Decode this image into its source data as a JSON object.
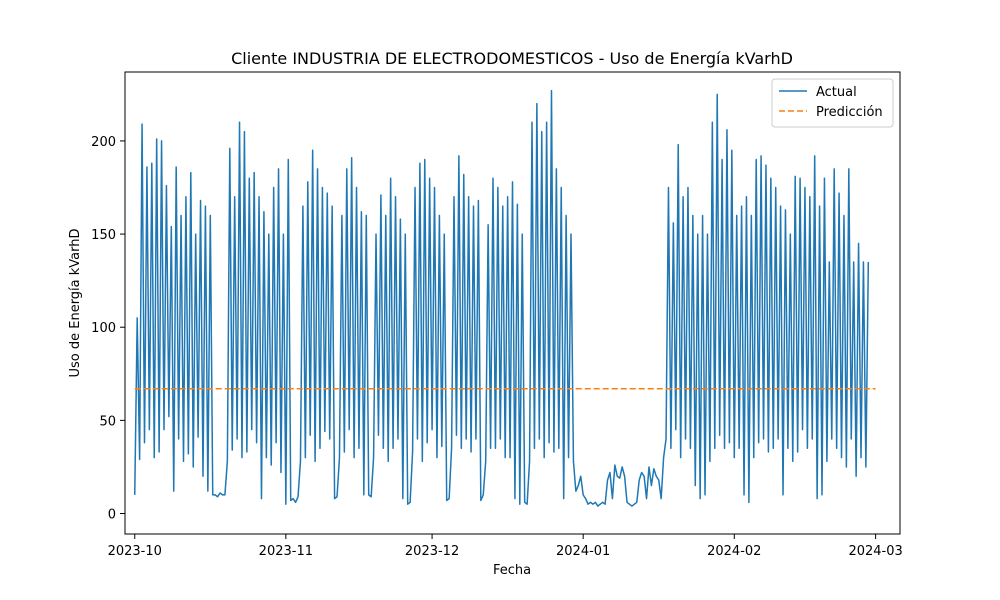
{
  "chart_data": {
    "type": "line",
    "title": "Cliente INDUSTRIA DE ELECTRODOMESTICOS - Uso de Energía kVarhD",
    "xlabel": "Fecha",
    "ylabel": "Uso de Energía kVarhD",
    "x_range": [
      "2023-09-29",
      "2024-03-06"
    ],
    "ylim": [
      -11,
      237
    ],
    "x_ticks": [
      "2023-10",
      "2023-11",
      "2023-12",
      "2024-01",
      "2024-02",
      "2024-03"
    ],
    "y_ticks": [
      0,
      50,
      100,
      150,
      200
    ],
    "grid": false,
    "legend_position": "top-right",
    "series": [
      {
        "name": "Actual",
        "color": "#1f77b4",
        "style": "solid",
        "x_start": "2023-10-01",
        "x_end": "2024-03-01",
        "points_per_day": 2,
        "values": [
          10,
          105,
          29,
          209,
          38,
          186,
          45,
          188,
          30,
          201,
          33,
          200,
          45,
          176,
          52,
          154,
          12,
          186,
          40,
          160,
          28,
          170,
          32,
          183,
          25,
          150,
          41,
          168,
          20,
          165,
          12,
          160,
          10,
          10,
          9,
          11,
          10,
          10,
          28,
          196,
          34,
          170,
          40,
          210,
          30,
          205,
          33,
          180,
          45,
          183,
          38,
          170,
          8,
          162,
          30,
          150,
          26,
          175,
          38,
          185,
          22,
          150,
          5,
          190,
          7,
          8,
          6,
          9,
          28,
          165,
          30,
          178,
          42,
          195,
          28,
          185,
          35,
          175,
          44,
          172,
          40,
          165,
          8,
          9,
          30,
          160,
          33,
          185,
          45,
          191,
          30,
          175,
          35,
          162,
          10,
          160,
          10,
          9,
          30,
          150,
          42,
          171,
          35,
          160,
          28,
          180,
          35,
          170,
          40,
          158,
          8,
          150,
          5,
          6,
          33,
          175,
          40,
          188,
          28,
          190,
          38,
          180,
          45,
          175,
          30,
          160,
          36,
          150,
          7,
          8,
          35,
          170,
          42,
          192,
          35,
          182,
          40,
          170,
          33,
          165,
          40,
          168,
          7,
          10,
          28,
          155,
          35,
          180,
          35,
          175,
          40,
          165,
          30,
          170,
          30,
          178,
          8,
          166,
          5,
          150,
          6,
          5,
          28,
          210,
          35,
          220,
          40,
          205,
          30,
          210,
          38,
          227,
          33,
          185,
          35,
          175,
          8,
          160,
          30,
          150,
          28,
          12,
          15,
          20,
          10,
          8,
          5,
          6,
          5,
          6,
          4,
          5,
          6,
          5,
          18,
          22,
          8,
          26,
          20,
          19,
          25,
          20,
          6,
          5,
          4,
          5,
          6,
          18,
          22,
          20,
          8,
          25,
          15,
          24,
          20,
          18,
          8,
          30,
          40,
          175,
          35,
          156,
          45,
          198,
          30,
          170,
          40,
          175,
          35,
          160,
          15,
          150,
          8,
          160,
          10,
          150,
          28,
          210,
          35,
          225,
          42,
          190,
          35,
          206,
          38,
          195,
          30,
          160,
          35,
          165,
          10,
          170,
          6,
          160,
          30,
          190,
          38,
          192,
          40,
          187,
          33,
          180,
          35,
          175,
          40,
          165,
          10,
          163,
          35,
          150,
          28,
          181,
          33,
          180,
          45,
          175,
          35,
          170,
          40,
          192,
          8,
          165,
          10,
          180,
          28,
          135,
          40,
          185,
          35,
          172,
          30,
          160,
          25,
          185,
          40,
          135,
          20,
          145,
          30,
          135,
          25,
          135
        ]
      },
      {
        "name": "Predicción",
        "color": "#ff7f0e",
        "style": "dashed",
        "x_start": "2023-10-01",
        "x_end": "2024-03-01",
        "values": [
          67,
          67
        ]
      }
    ]
  }
}
